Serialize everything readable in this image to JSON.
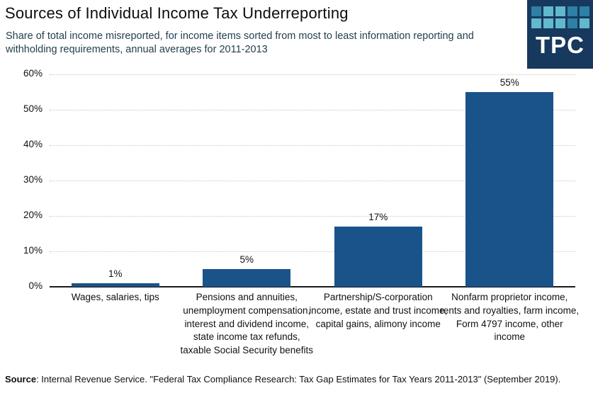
{
  "header": {
    "title": "Sources of Individual Income Tax Underreporting",
    "subtitle": "Share of total income misreported, for income items sorted from most to least information reporting and withholding requirements, annual averages for 2011-2013"
  },
  "logo": {
    "text": "TPC",
    "background": "#16395d",
    "square_colors": {
      "medium": "#2e80a6",
      "light": "#62b8cd"
    },
    "squares": [
      [
        "medium",
        "light",
        "light",
        "medium",
        "medium"
      ],
      [
        "light",
        "light",
        "light",
        "medium",
        "light"
      ]
    ]
  },
  "chart_data": {
    "type": "bar",
    "title": "Sources of Individual Income Tax Underreporting",
    "subtitle": "Share of total income misreported, for income items sorted from most to least information reporting and withholding requirements, annual averages for 2011-2013",
    "categories": [
      "Wages, salaries, tips",
      "Pensions and annuities, unemployment compensation, interest and dividend income, state income tax refunds, taxable Social Security benefits",
      "Partnership/S-corporation income, estate and trust income, capital gains, alimony income",
      "Nonfarm proprietor income, rents and royalties, farm income, Form 4797 income, other income"
    ],
    "values": [
      1,
      5,
      17,
      55
    ],
    "value_labels": [
      "1%",
      "5%",
      "17%",
      "55%"
    ],
    "xlabel": "",
    "ylabel": "",
    "ylim": [
      0,
      60
    ],
    "ytick_step": 10,
    "yticks": [
      "0%",
      "10%",
      "20%",
      "30%",
      "40%",
      "50%",
      "60%"
    ],
    "grid": "horizontal-dotted",
    "legend": "none",
    "bar_color": "#1a538a"
  },
  "footer": {
    "source_label": "Source",
    "source_text": ": Internal Revenue Service.  \"Federal Tax Compliance Research: Tax Gap Estimates for Tax Years 2011-2013\"  (September 2019)."
  }
}
